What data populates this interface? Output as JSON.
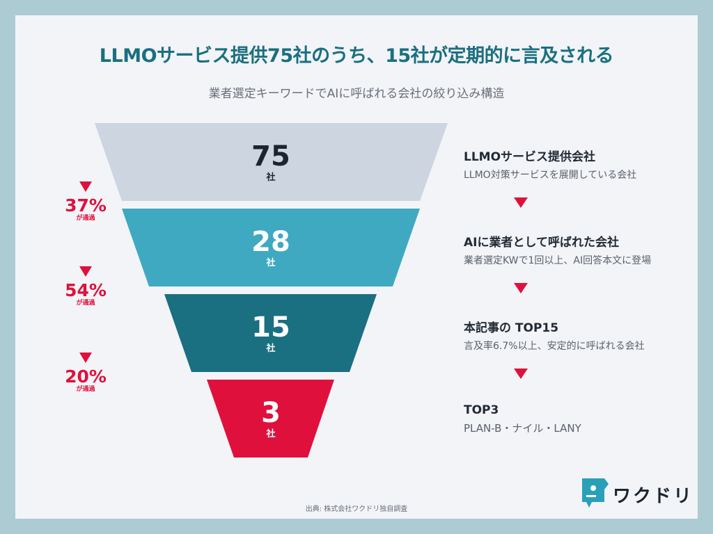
{
  "title": "LLMOサービス提供75社のうち、15社が定期的に言及される",
  "subtitle": "業者選定キーワードでAIに呼ばれる会社の絞り込み構造",
  "colors": {
    "background": "#adcbd3",
    "title": "#1a6f80",
    "stage1": "#ccd5e0",
    "stage2": "#3ea9c0",
    "stage3": "#1a6f80",
    "stage4": "#e0103c",
    "accent_red": "#e0103c"
  },
  "stages": [
    {
      "count": "75",
      "unit": "社",
      "name": "LLMOサービス提供会社",
      "desc": "LLMO対策サービスを展開している会社"
    },
    {
      "count": "28",
      "unit": "社",
      "name": "AIに業者として呼ばれた会社",
      "desc": "業者選定KWで1回以上、AI回答本文に登場"
    },
    {
      "count": "15",
      "unit": "社",
      "name": "本記事の TOP15",
      "desc": "言及率6.7%以上、安定的に呼ばれる会社"
    },
    {
      "count": "3",
      "unit": "社",
      "name": "TOP3",
      "desc": "PLAN-B・ナイル・LANY"
    }
  ],
  "pass_rates": [
    {
      "rate": "37%",
      "note": "が通過"
    },
    {
      "rate": "54%",
      "note": "が通過"
    },
    {
      "rate": "20%",
      "note": "が通過"
    }
  ],
  "source": "出典: 株式会社ワクドリ独自調査",
  "logo": {
    "text": "ワクドリ",
    "icon": "wakudori-bird-icon"
  }
}
